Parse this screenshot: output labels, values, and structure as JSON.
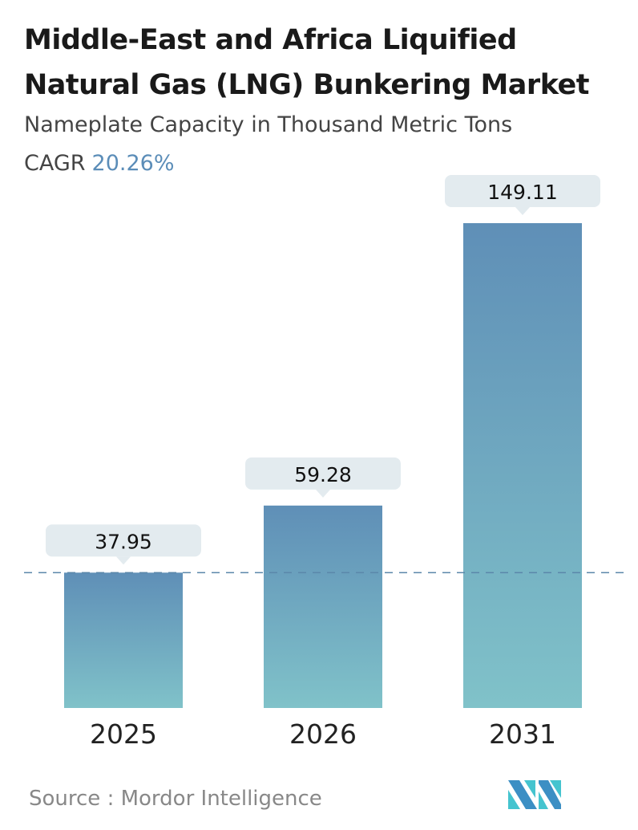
{
  "title": "Middle-East and Africa Liquified Natural Gas (LNG) Bunkering Market",
  "subtitle": "Nameplate Capacity in Thousand Metric Tons",
  "cagr_label": "CAGR",
  "cagr_value": "20.26%",
  "source": "Source :  Mordor Intelligence",
  "logo_text": "Mordor Intelligence",
  "colors": {
    "bar_top": "#5f8fb7",
    "bar_bottom": "#80c2c9",
    "label_box": "#e3ebef",
    "reference_line": "#5b87aa"
  },
  "chart_data": {
    "type": "bar",
    "categories": [
      "2025",
      "2026",
      "2031"
    ],
    "values": [
      37.95,
      59.28,
      149.11
    ],
    "data_labels": [
      "37.95",
      "59.28",
      "149.11"
    ],
    "reference_line": "dashed line at 2025 value",
    "grid": false
  }
}
